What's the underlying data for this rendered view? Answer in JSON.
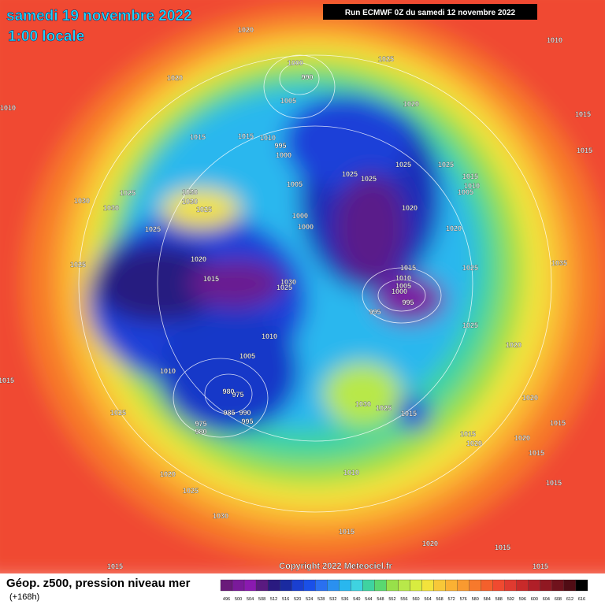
{
  "header": {
    "date": "samedi 19 novembre 2022",
    "time": "1:00 locale",
    "run": "Run ECMWF 0Z du samedi 12 novembre 2022"
  },
  "copyright": "Copyright 2022 Meteociel.fr",
  "footer": {
    "title": "Géop. z500, pression niveau mer",
    "lead": "(+168h)"
  },
  "legend": [
    496,
    500,
    504,
    508,
    512,
    516,
    520,
    524,
    528,
    532,
    536,
    540,
    544,
    548,
    552,
    556,
    560,
    564,
    568,
    572,
    576,
    580,
    584,
    588,
    592,
    596,
    600,
    604,
    608,
    612,
    616
  ],
  "isobar_labels": [
    1020,
    1010,
    1025,
    1000,
    990,
    1020,
    1010,
    1005,
    1020,
    1015,
    1015,
    1015,
    1010,
    995,
    1000,
    1015,
    1025,
    1025,
    1025,
    1025,
    1015,
    1010,
    1005,
    1005,
    1025,
    1030,
    1030,
    1030,
    1030,
    1025,
    1020,
    1000,
    1000,
    1025,
    1020,
    1020,
    1025,
    1015,
    1025,
    1015,
    1030,
    1010,
    1025,
    1005,
    1000,
    995,
    995,
    1025,
    1010,
    1020,
    1005,
    1010,
    980,
    975,
    1030,
    1025,
    1015,
    985,
    990,
    995,
    975,
    980,
    1025,
    1020,
    1015,
    1015,
    1020,
    1020,
    1015,
    1020,
    1025,
    1010,
    1015,
    1030,
    1015,
    1020,
    1015,
    1015,
    1015,
    1015,
    1035
  ]
}
